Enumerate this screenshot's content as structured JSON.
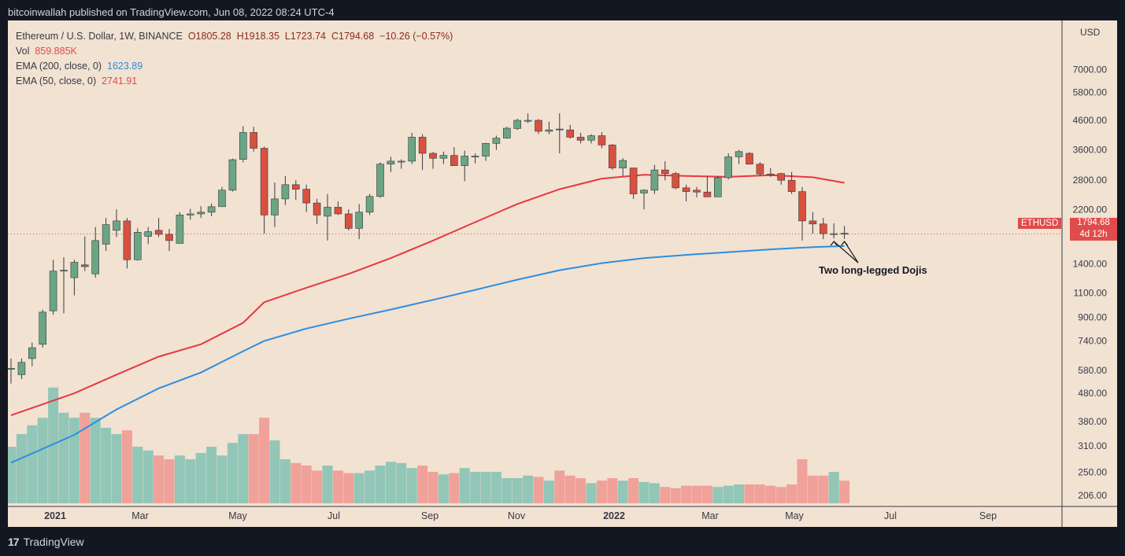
{
  "header": {
    "published": "bitcoinwallah published on TradingView.com, Jun 08, 2022 08:24 UTC-4"
  },
  "legend": {
    "symbol": "Ethereum / U.S. Dollar, 1W, BINANCE",
    "open": "O1805.28",
    "high": "H1918.35",
    "low": "L1723.74",
    "close": "C1794.68",
    "change": "−10.26 (−0.57%)",
    "vol_label": "Vol",
    "vol_value": "859.885K",
    "ema200_label": "EMA (200, close, 0)",
    "ema200_value": "1623.89",
    "ema50_label": "EMA (50, close, 0)",
    "ema50_value": "2741.91"
  },
  "price_axis": {
    "currency": "USD",
    "ticks": [
      "7000.00",
      "5800.00",
      "4600.00",
      "3600.00",
      "2800.00",
      "2200.00",
      "1400.00",
      "1100.00",
      "900.00",
      "740.00",
      "580.00",
      "480.00",
      "380.00",
      "310.00",
      "250.00",
      "206.00"
    ]
  },
  "last_price": {
    "symbol_tag": "ETHUSD",
    "price": "1794.68",
    "countdown": "4d 12h"
  },
  "annotation": {
    "text": "Two long-legged Dojis"
  },
  "footer": {
    "brand": "TradingView"
  },
  "colors": {
    "up": "#6ba583",
    "down": "#d9503f",
    "vol_up": "#92c6b7",
    "vol_down": "#f0a199",
    "ema50": "#e8383f",
    "ema200": "#2d8ee0",
    "background": "#f2e2d2"
  },
  "chart_data": {
    "type": "candlestick",
    "title": "Ethereum / U.S. Dollar, 1W, BINANCE",
    "scale": "log",
    "ylim": [
      206,
      8000
    ],
    "x_labels": [
      "2021",
      "Mar",
      "May",
      "Jul",
      "Sep",
      "Nov",
      "2022",
      "Mar",
      "May",
      "Jul",
      "Sep"
    ],
    "weeks": [
      {
        "o": 590,
        "h": 640,
        "l": 520,
        "c": 590,
        "v": 0.45
      },
      {
        "o": 560,
        "h": 640,
        "l": 540,
        "c": 620,
        "v": 0.55
      },
      {
        "o": 640,
        "h": 730,
        "l": 600,
        "c": 700,
        "v": 0.62
      },
      {
        "o": 720,
        "h": 960,
        "l": 700,
        "c": 940,
        "v": 0.68
      },
      {
        "o": 950,
        "h": 1450,
        "l": 920,
        "c": 1320,
        "v": 0.92
      },
      {
        "o": 1320,
        "h": 1480,
        "l": 930,
        "c": 1330,
        "v": 0.72
      },
      {
        "o": 1250,
        "h": 1450,
        "l": 1080,
        "c": 1420,
        "v": 0.68
      },
      {
        "o": 1390,
        "h": 1760,
        "l": 1320,
        "c": 1370,
        "v": 0.72
      },
      {
        "o": 1290,
        "h": 1900,
        "l": 1250,
        "c": 1700,
        "v": 0.68
      },
      {
        "o": 1650,
        "h": 2050,
        "l": 1560,
        "c": 1940,
        "v": 0.6
      },
      {
        "o": 1850,
        "h": 2200,
        "l": 1750,
        "c": 2000,
        "v": 0.55
      },
      {
        "o": 2000,
        "h": 2050,
        "l": 1350,
        "c": 1450,
        "v": 0.58
      },
      {
        "o": 1450,
        "h": 1880,
        "l": 1440,
        "c": 1820,
        "v": 0.45
      },
      {
        "o": 1760,
        "h": 1900,
        "l": 1650,
        "c": 1830,
        "v": 0.42
      },
      {
        "o": 1850,
        "h": 2050,
        "l": 1750,
        "c": 1790,
        "v": 0.38
      },
      {
        "o": 1790,
        "h": 1870,
        "l": 1560,
        "c": 1700,
        "v": 0.35
      },
      {
        "o": 1660,
        "h": 2150,
        "l": 1660,
        "c": 2100,
        "v": 0.38
      },
      {
        "o": 2100,
        "h": 2210,
        "l": 2020,
        "c": 2120,
        "v": 0.35
      },
      {
        "o": 2120,
        "h": 2260,
        "l": 2050,
        "c": 2150,
        "v": 0.4
      },
      {
        "o": 2150,
        "h": 2310,
        "l": 2080,
        "c": 2250,
        "v": 0.45
      },
      {
        "o": 2250,
        "h": 2650,
        "l": 2250,
        "c": 2580,
        "v": 0.38
      },
      {
        "o": 2580,
        "h": 3350,
        "l": 2550,
        "c": 3320,
        "v": 0.48
      },
      {
        "o": 3330,
        "h": 4380,
        "l": 3250,
        "c": 4160,
        "v": 0.55
      },
      {
        "o": 4160,
        "h": 4360,
        "l": 3550,
        "c": 3650,
        "v": 0.55
      },
      {
        "o": 3650,
        "h": 3700,
        "l": 1800,
        "c": 2100,
        "v": 0.68
      },
      {
        "o": 2100,
        "h": 2750,
        "l": 1900,
        "c": 2400,
        "v": 0.5
      },
      {
        "o": 2400,
        "h": 2900,
        "l": 2280,
        "c": 2700,
        "v": 0.35
      },
      {
        "o": 2700,
        "h": 2800,
        "l": 2380,
        "c": 2600,
        "v": 0.32
      },
      {
        "o": 2600,
        "h": 2700,
        "l": 2150,
        "c": 2320,
        "v": 0.3
      },
      {
        "o": 2320,
        "h": 2400,
        "l": 1950,
        "c": 2100,
        "v": 0.26
      },
      {
        "o": 2080,
        "h": 2500,
        "l": 1700,
        "c": 2240,
        "v": 0.3
      },
      {
        "o": 2240,
        "h": 2350,
        "l": 2100,
        "c": 2120,
        "v": 0.26
      },
      {
        "o": 2120,
        "h": 2200,
        "l": 1850,
        "c": 1880,
        "v": 0.24
      },
      {
        "o": 1880,
        "h": 2300,
        "l": 1720,
        "c": 2150,
        "v": 0.24
      },
      {
        "o": 2150,
        "h": 2500,
        "l": 2100,
        "c": 2450,
        "v": 0.26
      },
      {
        "o": 2450,
        "h": 3250,
        "l": 2420,
        "c": 3200,
        "v": 0.3
      },
      {
        "o": 3200,
        "h": 3400,
        "l": 3000,
        "c": 3280,
        "v": 0.33
      },
      {
        "o": 3280,
        "h": 3330,
        "l": 3080,
        "c": 3280,
        "v": 0.32
      },
      {
        "o": 3280,
        "h": 4150,
        "l": 3200,
        "c": 4000,
        "v": 0.28
      },
      {
        "o": 4000,
        "h": 4100,
        "l": 3050,
        "c": 3500,
        "v": 0.3
      },
      {
        "o": 3500,
        "h": 3540,
        "l": 3080,
        "c": 3360,
        "v": 0.25
      },
      {
        "o": 3360,
        "h": 3550,
        "l": 3200,
        "c": 3440,
        "v": 0.23
      },
      {
        "o": 3440,
        "h": 3680,
        "l": 3160,
        "c": 3160,
        "v": 0.24
      },
      {
        "o": 3160,
        "h": 3580,
        "l": 2780,
        "c": 3420,
        "v": 0.28
      },
      {
        "o": 3420,
        "h": 3500,
        "l": 3220,
        "c": 3420,
        "v": 0.25
      },
      {
        "o": 3420,
        "h": 3820,
        "l": 3290,
        "c": 3800,
        "v": 0.25
      },
      {
        "o": 3800,
        "h": 4050,
        "l": 3600,
        "c": 3970,
        "v": 0.25
      },
      {
        "o": 3970,
        "h": 4360,
        "l": 3950,
        "c": 4310,
        "v": 0.2
      },
      {
        "o": 4300,
        "h": 4660,
        "l": 4250,
        "c": 4600,
        "v": 0.2
      },
      {
        "o": 4600,
        "h": 4870,
        "l": 4500,
        "c": 4600,
        "v": 0.22
      },
      {
        "o": 4600,
        "h": 4650,
        "l": 4100,
        "c": 4200,
        "v": 0.21
      },
      {
        "o": 4200,
        "h": 4550,
        "l": 4100,
        "c": 4250,
        "v": 0.18
      },
      {
        "o": 4280,
        "h": 4880,
        "l": 3500,
        "c": 4250,
        "v": 0.26
      },
      {
        "o": 4250,
        "h": 4430,
        "l": 3950,
        "c": 4000,
        "v": 0.22
      },
      {
        "o": 4000,
        "h": 4150,
        "l": 3800,
        "c": 3900,
        "v": 0.2
      },
      {
        "o": 3900,
        "h": 4100,
        "l": 3800,
        "c": 4050,
        "v": 0.16
      },
      {
        "o": 4050,
        "h": 4170,
        "l": 3650,
        "c": 3750,
        "v": 0.18
      },
      {
        "o": 3750,
        "h": 3780,
        "l": 3050,
        "c": 3100,
        "v": 0.2
      },
      {
        "o": 3100,
        "h": 3360,
        "l": 2900,
        "c": 3300,
        "v": 0.18
      },
      {
        "o": 3100,
        "h": 3100,
        "l": 2400,
        "c": 2500,
        "v": 0.2
      },
      {
        "o": 2520,
        "h": 2600,
        "l": 2200,
        "c": 2580,
        "v": 0.17
      },
      {
        "o": 2580,
        "h": 3180,
        "l": 2500,
        "c": 3050,
        "v": 0.16
      },
      {
        "o": 3050,
        "h": 3280,
        "l": 2800,
        "c": 2960,
        "v": 0.13
      },
      {
        "o": 2960,
        "h": 3000,
        "l": 2600,
        "c": 2630,
        "v": 0.12
      },
      {
        "o": 2630,
        "h": 2700,
        "l": 2350,
        "c": 2550,
        "v": 0.14
      },
      {
        "o": 2580,
        "h": 2650,
        "l": 2430,
        "c": 2540,
        "v": 0.14
      },
      {
        "o": 2540,
        "h": 2900,
        "l": 2450,
        "c": 2440,
        "v": 0.14
      },
      {
        "o": 2440,
        "h": 2900,
        "l": 2500,
        "c": 2860,
        "v": 0.13
      },
      {
        "o": 2860,
        "h": 3500,
        "l": 2820,
        "c": 3400,
        "v": 0.14
      },
      {
        "o": 3400,
        "h": 3600,
        "l": 3200,
        "c": 3550,
        "v": 0.15
      },
      {
        "o": 3500,
        "h": 3530,
        "l": 3200,
        "c": 3200,
        "v": 0.15
      },
      {
        "o": 3200,
        "h": 3250,
        "l": 2900,
        "c": 2950,
        "v": 0.15
      },
      {
        "o": 2950,
        "h": 3100,
        "l": 2880,
        "c": 2920,
        "v": 0.14
      },
      {
        "o": 2960,
        "h": 2980,
        "l": 2700,
        "c": 2800,
        "v": 0.13
      },
      {
        "o": 2800,
        "h": 3000,
        "l": 2500,
        "c": 2550,
        "v": 0.15
      },
      {
        "o": 2550,
        "h": 2650,
        "l": 1700,
        "c": 2000,
        "v": 0.35
      },
      {
        "o": 2000,
        "h": 2150,
        "l": 1800,
        "c": 1950,
        "v": 0.22
      },
      {
        "o": 1950,
        "h": 2050,
        "l": 1720,
        "c": 1800,
        "v": 0.22
      },
      {
        "o": 1800,
        "h": 1960,
        "l": 1730,
        "c": 1800,
        "v": 0.25
      },
      {
        "o": 1805.28,
        "h": 1918.35,
        "l": 1723.74,
        "c": 1794.68,
        "v": 0.18
      }
    ],
    "ema50": [
      [
        0,
        400
      ],
      [
        6,
        480
      ],
      [
        10,
        560
      ],
      [
        14,
        650
      ],
      [
        18,
        720
      ],
      [
        22,
        860
      ],
      [
        24,
        1020
      ],
      [
        28,
        1150
      ],
      [
        32,
        1290
      ],
      [
        36,
        1470
      ],
      [
        40,
        1700
      ],
      [
        44,
        1980
      ],
      [
        48,
        2300
      ],
      [
        52,
        2600
      ],
      [
        56,
        2840
      ],
      [
        60,
        2930
      ],
      [
        64,
        2900
      ],
      [
        68,
        2880
      ],
      [
        72,
        2920
      ],
      [
        76,
        2870
      ],
      [
        79,
        2741.91
      ]
    ],
    "ema200": [
      [
        0,
        270
      ],
      [
        6,
        340
      ],
      [
        10,
        420
      ],
      [
        14,
        500
      ],
      [
        18,
        570
      ],
      [
        22,
        680
      ],
      [
        24,
        740
      ],
      [
        28,
        820
      ],
      [
        32,
        890
      ],
      [
        36,
        960
      ],
      [
        40,
        1040
      ],
      [
        44,
        1130
      ],
      [
        48,
        1230
      ],
      [
        52,
        1330
      ],
      [
        56,
        1410
      ],
      [
        60,
        1470
      ],
      [
        64,
        1510
      ],
      [
        68,
        1545
      ],
      [
        72,
        1580
      ],
      [
        76,
        1610
      ],
      [
        79,
        1623.89
      ]
    ]
  }
}
